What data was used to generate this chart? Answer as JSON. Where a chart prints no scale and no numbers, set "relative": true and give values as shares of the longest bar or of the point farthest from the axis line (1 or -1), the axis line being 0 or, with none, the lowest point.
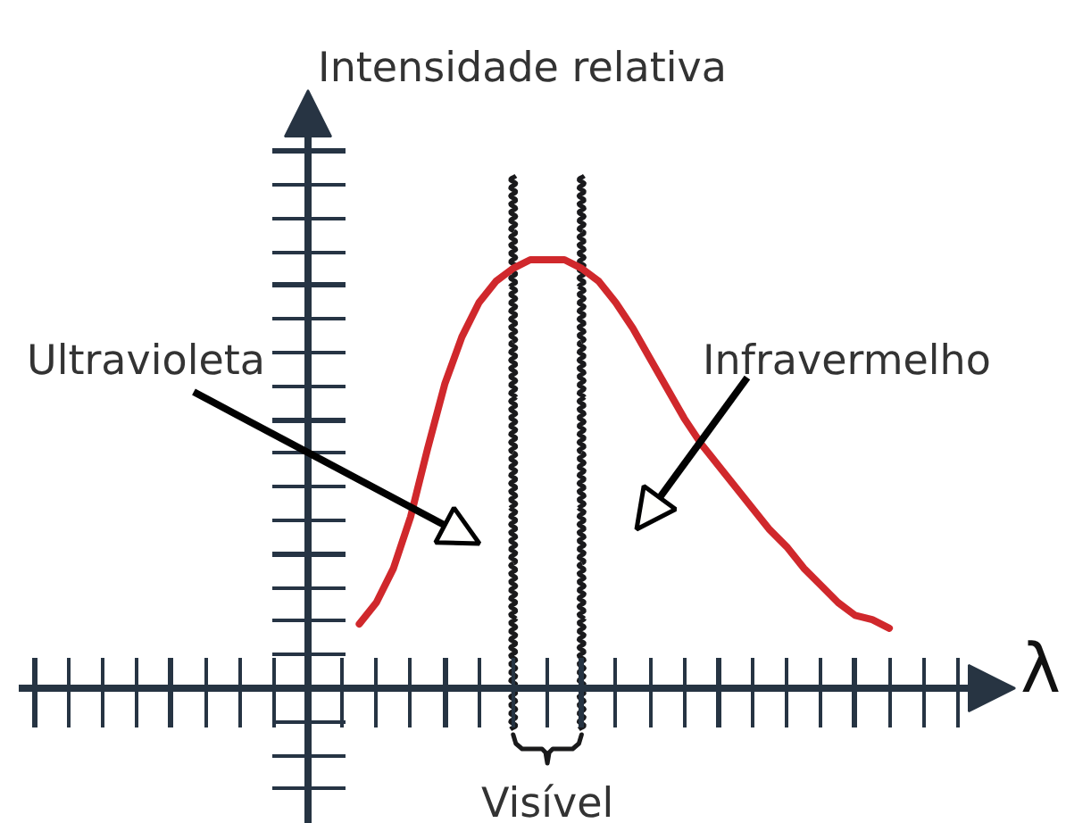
{
  "chart_data": {
    "type": "line",
    "ylabel": "Intensidade relativa",
    "xlabel": "λ",
    "relative": true,
    "categories": [
      null,
      null,
      null,
      null,
      null,
      null,
      null,
      null,
      null,
      null,
      null,
      null,
      null,
      null,
      null,
      null,
      null,
      null,
      null,
      null,
      null,
      null,
      null,
      null,
      null,
      null,
      null,
      null,
      null,
      null,
      null,
      null
    ],
    "series": [
      {
        "color": "#d0282c",
        "values": [
          0.15,
          0.2,
          0.28,
          0.4,
          0.56,
          0.71,
          0.82,
          0.9,
          0.95,
          0.98,
          1.0,
          1.0,
          1.0,
          0.98,
          0.95,
          0.9,
          0.84,
          0.77,
          0.7,
          0.63,
          0.57,
          0.52,
          0.47,
          0.42,
          0.37,
          0.33,
          0.28,
          0.24,
          0.2,
          0.17,
          0.16,
          0.14
        ]
      }
    ],
    "annotations": [
      "Ultravioleta",
      "Infravermelho",
      "Visível"
    ]
  }
}
